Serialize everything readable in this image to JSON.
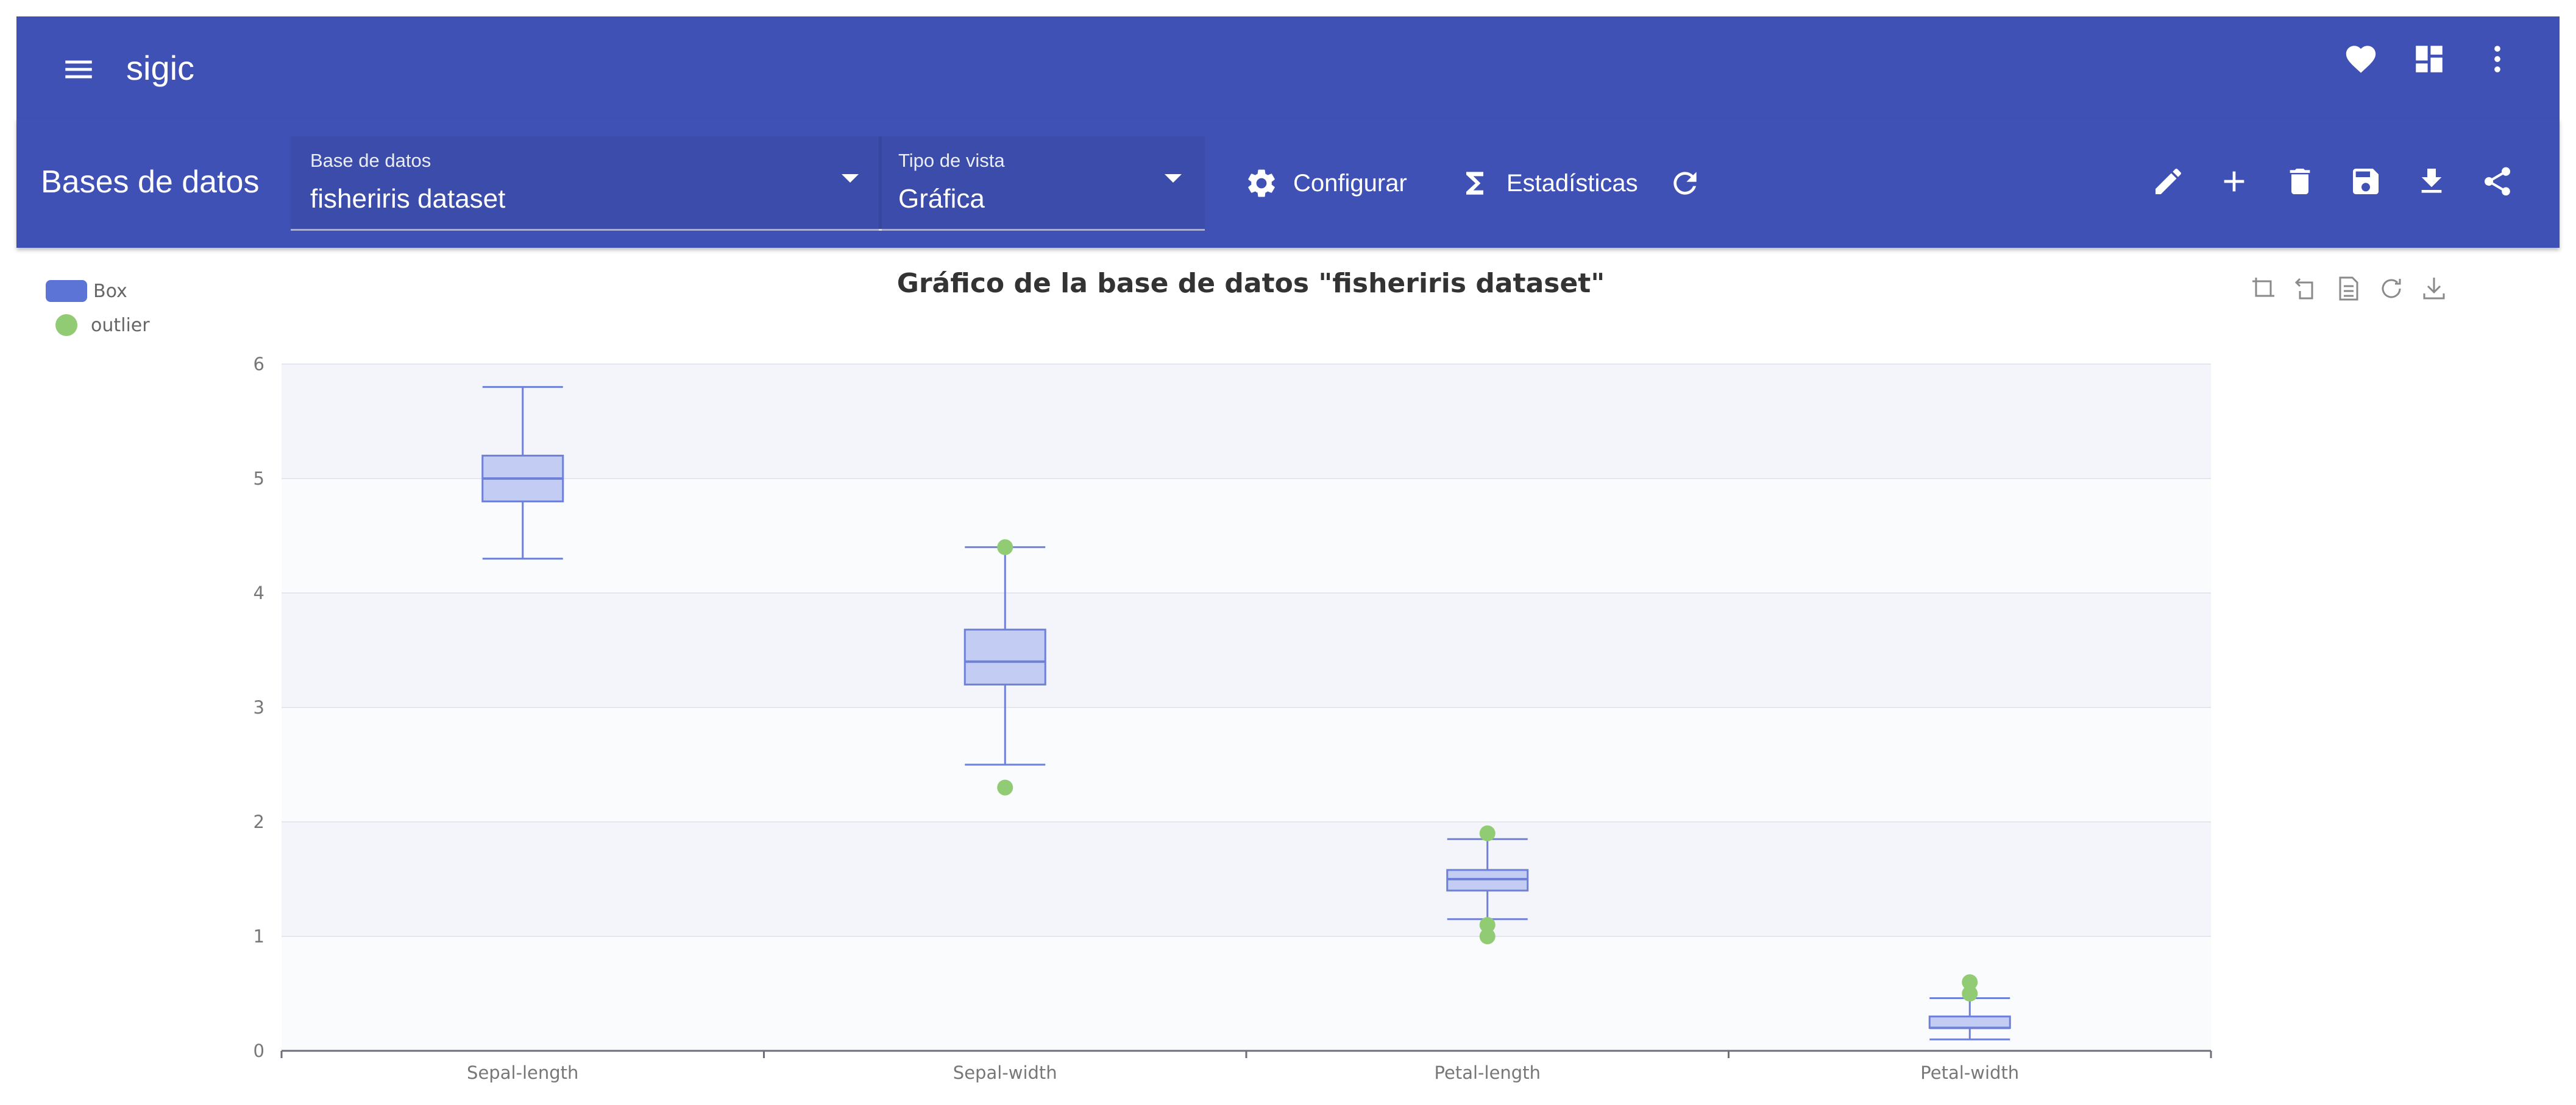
{
  "app": {
    "title": "sigic"
  },
  "topbar": {
    "icons": [
      "menu-icon",
      "heart-icon",
      "dashboard-icon",
      "more-vert-icon"
    ]
  },
  "toolbar": {
    "page_title": "Bases de datos",
    "database_select": {
      "label": "Base de datos",
      "value": "fisheriris dataset"
    },
    "view_select": {
      "label": "Tipo de vista",
      "value": "Gráfica"
    },
    "configure_label": "Configurar",
    "stats_label": "Estadísticas",
    "action_icons": [
      "edit-icon",
      "add-icon",
      "delete-icon",
      "save-icon",
      "download-icon",
      "share-icon"
    ]
  },
  "chart_data": {
    "type": "boxplot",
    "title": "Gráfico de la base de datos \"fisheriris dataset\"",
    "legend": [
      "Box",
      "outlier"
    ],
    "legend_position": "top-left",
    "categories": [
      "Sepal-length",
      "Sepal-width",
      "Petal-length",
      "Petal-width"
    ],
    "ylim": [
      0,
      6
    ],
    "yticks": [
      0,
      1,
      2,
      3,
      4,
      5,
      6
    ],
    "boxes": [
      {
        "min": 4.3,
        "q1": 4.8,
        "median": 5.0,
        "q3": 5.2,
        "max": 5.8
      },
      {
        "min": 2.5,
        "q1": 3.2,
        "median": 3.4,
        "q3": 3.68,
        "max": 4.4
      },
      {
        "min": 1.15,
        "q1": 1.4,
        "median": 1.5,
        "q3": 1.58,
        "max": 1.85
      },
      {
        "min": 0.1,
        "q1": 0.2,
        "median": 0.2,
        "q3": 0.3,
        "max": 0.46
      }
    ],
    "outliers": [
      {
        "category": "Sepal-width",
        "value": 4.4
      },
      {
        "category": "Sepal-width",
        "value": 2.3
      },
      {
        "category": "Petal-length",
        "value": 1.9
      },
      {
        "category": "Petal-length",
        "value": 1.1
      },
      {
        "category": "Petal-length",
        "value": 1.0
      },
      {
        "category": "Petal-width",
        "value": 0.6
      },
      {
        "category": "Petal-width",
        "value": 0.5
      }
    ],
    "colors": {
      "box_fill": "#c3ccf2",
      "box_stroke": "#6e80d8",
      "outlier": "#91cc75",
      "band": "#f3f5fb"
    },
    "toolbox_icons": [
      "zoom-icon",
      "zoom-reset-icon",
      "data-view-icon",
      "restore-icon",
      "save-image-icon"
    ]
  }
}
